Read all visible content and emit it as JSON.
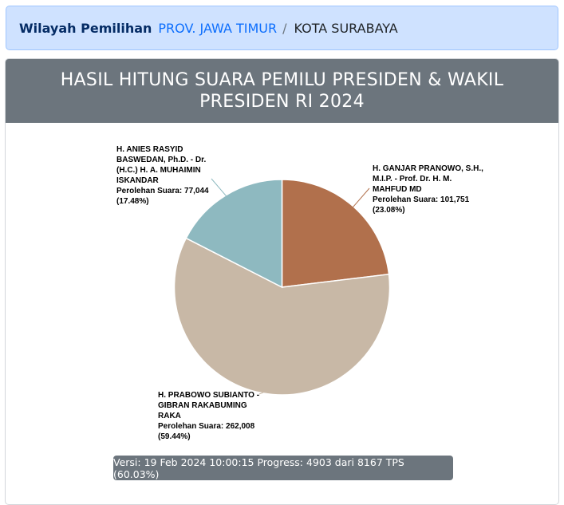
{
  "breadcrumb": {
    "title": "Wilayah Pemilihan",
    "province": "PROV. JAWA TIMUR",
    "separator": "/",
    "city": "KOTA SURABAYA"
  },
  "card": {
    "title": "HASIL HITUNG SUARA PEMILU PRESIDEN & WAKIL PRESIDEN RI 2024"
  },
  "chart_data": {
    "type": "pie",
    "title": "HASIL HITUNG SUARA PEMILU PRESIDEN & WAKIL PRESIDEN RI 2024",
    "slices": [
      {
        "name": "H. GANJAR PRANOWO, S.H., M.I.P. - Prof. Dr. H. M. MAHFUD MD",
        "detail": "Perolehan Suara: 101,751",
        "percent_label": "(23.08%)",
        "value": 101751,
        "color": "#b1704c"
      },
      {
        "name": "H. PRABOWO SUBIANTO - GIBRAN RAKABUMING RAKA",
        "detail": "Perolehan Suara: 262,008",
        "percent_label": "(59.44%)",
        "value": 262008,
        "color": "#c8b8a6"
      },
      {
        "name": "H. ANIES RASYID BASWEDAN, Ph.D. - Dr. (H.C.) H. A. MUHAIMIN ISKANDAR",
        "detail": "Perolehan Suara: 77,044",
        "percent_label": "(17.48%)",
        "value": 77044,
        "color": "#8eb9c0"
      }
    ],
    "start_angle": "12 o'clock",
    "direction": "clockwise"
  },
  "footer": {
    "version": "Versi: 19 Feb 2024 10:00:15 Progress: 4903 dari 8167 TPS (60.03%)"
  }
}
